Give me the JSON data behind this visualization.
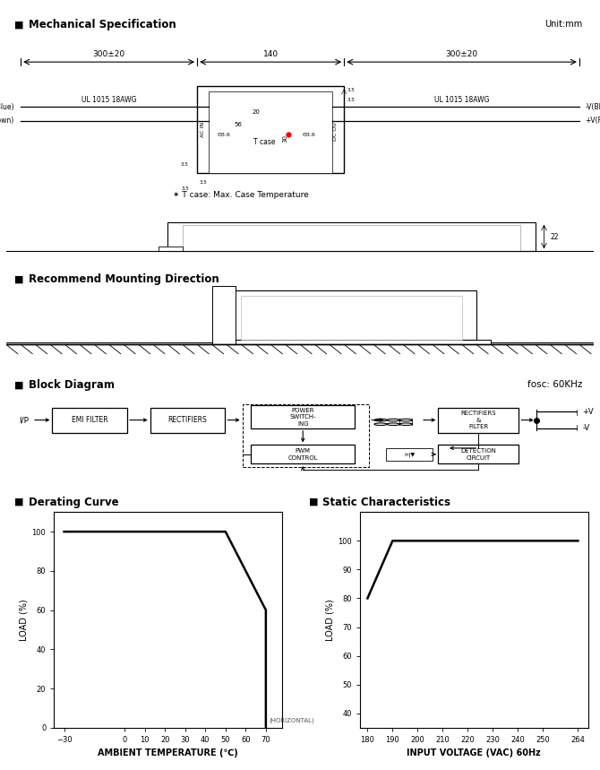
{
  "bg_color": "#ffffff",
  "text_color": "#000000",
  "line_color": "#000000",
  "section_titles": {
    "mechanical": "Mechanical Specification",
    "mounting": "Recommend Mounting Direction",
    "block": "Block Diagram",
    "derating": "Derating Curve",
    "static": "Static Characteristics"
  },
  "unit_text": "Unit:mm",
  "fosc_text": "fosc: 60KHz",
  "tcase_note": "✶ T case: Max. Case Temperature",
  "derating_curve": {
    "x": [
      -30,
      50,
      70,
      70
    ],
    "y": [
      100,
      100,
      60,
      0
    ],
    "xlim": [
      -35,
      78
    ],
    "ylim": [
      0,
      110
    ],
    "xticks": [
      -30,
      0,
      10,
      20,
      30,
      40,
      50,
      60,
      70
    ],
    "yticks": [
      0,
      20,
      40,
      60,
      80,
      100
    ],
    "xlabel": "AMBIENT TEMPERATURE (℃)",
    "ylabel": "LOAD (%)",
    "xlabel2": "(HORIZONTAL)",
    "title": "Derating Curve"
  },
  "static_curve": {
    "x": [
      180,
      190,
      264
    ],
    "y": [
      80,
      100,
      100
    ],
    "xlim": [
      177,
      268
    ],
    "ylim": [
      35,
      110
    ],
    "xticks": [
      180,
      190,
      200,
      210,
      220,
      230,
      240,
      250,
      264
    ],
    "yticks": [
      40,
      50,
      60,
      70,
      80,
      90,
      100
    ],
    "xlabel": "INPUT VOLTAGE (VAC) 60Hz",
    "ylabel": "LOAD (%)",
    "title": "Static Characteristics"
  }
}
